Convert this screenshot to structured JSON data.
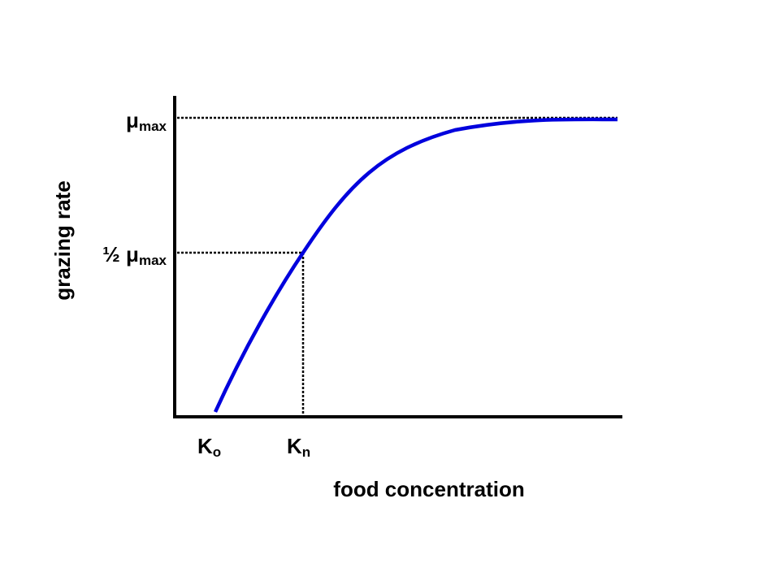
{
  "y_axis": {
    "title": "grazing rate",
    "labels": [
      {
        "symbol": "μ",
        "subscript": "max"
      },
      {
        "symbol": "½ μ",
        "subscript": "max"
      }
    ]
  },
  "x_axis": {
    "title": "food concentration",
    "labels": [
      {
        "symbol": "K",
        "subscript": "o"
      },
      {
        "symbol": "K",
        "subscript": "n"
      }
    ]
  }
}
